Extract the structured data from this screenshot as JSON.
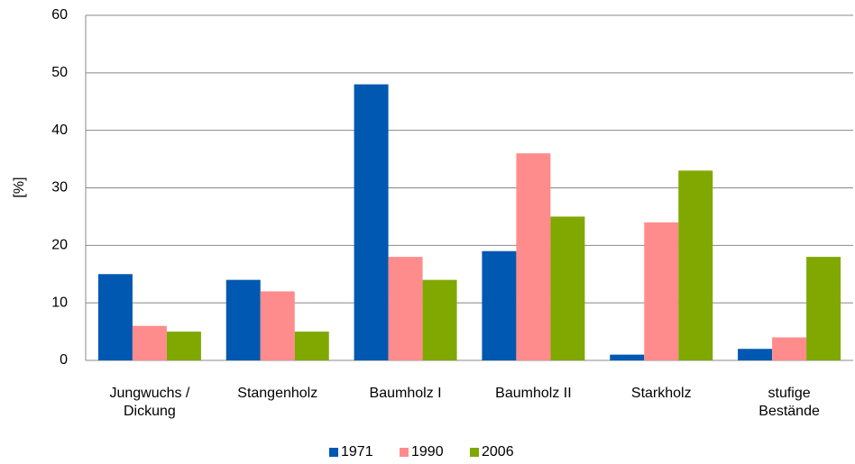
{
  "chart_data": {
    "type": "bar",
    "y_label": "[%]",
    "categories": [
      "Jungwuchs /\nDickung",
      "Stangenholz",
      "Baumholz I",
      "Baumholz II",
      "Starkholz",
      "stufige\nBestände"
    ],
    "series": [
      {
        "name": "1971",
        "color": "#0058b0",
        "values": [
          15,
          14,
          48,
          19,
          1,
          2
        ]
      },
      {
        "name": "1990",
        "color": "#ff8c8c",
        "values": [
          6,
          12,
          18,
          36,
          24,
          4
        ]
      },
      {
        "name": "2006",
        "color": "#80a800",
        "values": [
          5,
          5,
          14,
          25,
          33,
          18
        ]
      }
    ],
    "ylim": [
      0,
      60
    ],
    "yticks": [
      0,
      10,
      20,
      30,
      40,
      50,
      60
    ],
    "grid": true,
    "legend": "bottom"
  }
}
